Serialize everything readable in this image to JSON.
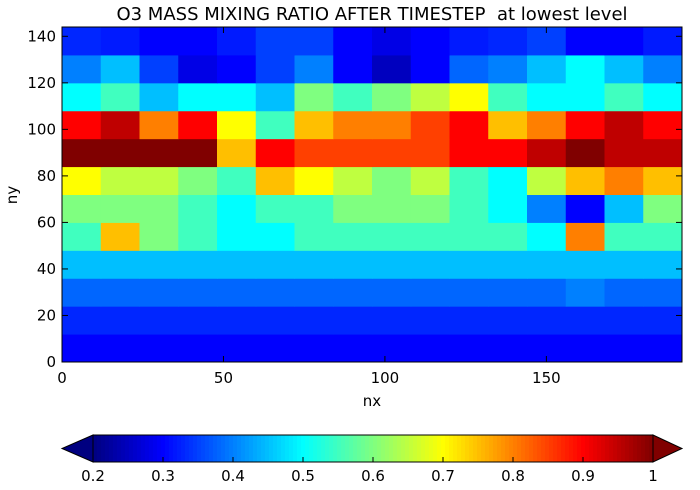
{
  "chart_data": {
    "type": "heatmap",
    "title": "O3 MASS MIXING RATIO AFTER TIMESTEP  at lowest level",
    "x_label": "nx",
    "y_label": "ny",
    "xlim": [
      0,
      192
    ],
    "ylim": [
      0,
      144
    ],
    "xticks": [
      0,
      50,
      100,
      150
    ],
    "yticks": [
      0,
      20,
      40,
      60,
      80,
      100,
      120,
      140
    ],
    "x": [
      6,
      18,
      30,
      42,
      54,
      66,
      78,
      90,
      102,
      114,
      126,
      138,
      150,
      162,
      174,
      186
    ],
    "y": [
      6,
      18,
      30,
      42,
      54,
      66,
      78,
      90,
      102,
      114,
      126,
      138
    ],
    "z": [
      [
        0.3,
        0.3,
        0.3,
        0.3,
        0.3,
        0.3,
        0.3,
        0.3,
        0.3,
        0.3,
        0.3,
        0.3,
        0.3,
        0.3,
        0.3,
        0.3
      ],
      [
        0.33,
        0.33,
        0.33,
        0.33,
        0.33,
        0.33,
        0.33,
        0.33,
        0.33,
        0.33,
        0.33,
        0.33,
        0.33,
        0.33,
        0.33,
        0.33
      ],
      [
        0.38,
        0.38,
        0.38,
        0.38,
        0.38,
        0.38,
        0.38,
        0.38,
        0.38,
        0.38,
        0.38,
        0.38,
        0.38,
        0.4,
        0.38,
        0.38
      ],
      [
        0.45,
        0.45,
        0.45,
        0.45,
        0.45,
        0.45,
        0.45,
        0.45,
        0.45,
        0.45,
        0.45,
        0.45,
        0.45,
        0.45,
        0.45,
        0.45
      ],
      [
        0.55,
        0.75,
        0.6,
        0.55,
        0.5,
        0.5,
        0.55,
        0.55,
        0.55,
        0.55,
        0.55,
        0.55,
        0.5,
        0.8,
        0.55,
        0.55
      ],
      [
        0.6,
        0.6,
        0.6,
        0.55,
        0.5,
        0.55,
        0.55,
        0.6,
        0.6,
        0.6,
        0.55,
        0.5,
        0.4,
        0.3,
        0.45,
        0.6
      ],
      [
        0.7,
        0.65,
        0.65,
        0.6,
        0.55,
        0.75,
        0.7,
        0.65,
        0.6,
        0.65,
        0.55,
        0.5,
        0.65,
        0.75,
        0.8,
        0.75
      ],
      [
        1.0,
        1.0,
        1.0,
        1.0,
        0.75,
        0.9,
        0.85,
        0.85,
        0.85,
        0.85,
        0.9,
        0.9,
        0.95,
        1.0,
        0.95,
        0.95
      ],
      [
        0.9,
        0.95,
        0.8,
        0.9,
        0.7,
        0.55,
        0.75,
        0.8,
        0.8,
        0.85,
        0.9,
        0.75,
        0.8,
        0.9,
        0.95,
        0.9
      ],
      [
        0.5,
        0.55,
        0.45,
        0.5,
        0.5,
        0.45,
        0.6,
        0.55,
        0.6,
        0.65,
        0.7,
        0.55,
        0.5,
        0.5,
        0.55,
        0.5
      ],
      [
        0.4,
        0.45,
        0.35,
        0.28,
        0.3,
        0.35,
        0.4,
        0.3,
        0.25,
        0.3,
        0.38,
        0.4,
        0.45,
        0.5,
        0.45,
        0.4
      ],
      [
        0.33,
        0.32,
        0.3,
        0.3,
        0.32,
        0.35,
        0.35,
        0.3,
        0.28,
        0.3,
        0.32,
        0.33,
        0.35,
        0.3,
        0.3,
        0.32
      ]
    ],
    "colormap": "jet",
    "clim": [
      0.2,
      1.0
    ],
    "cticks": [
      0.2,
      0.3,
      0.4,
      0.5,
      0.6,
      0.7,
      0.8,
      0.9,
      1.0
    ]
  }
}
